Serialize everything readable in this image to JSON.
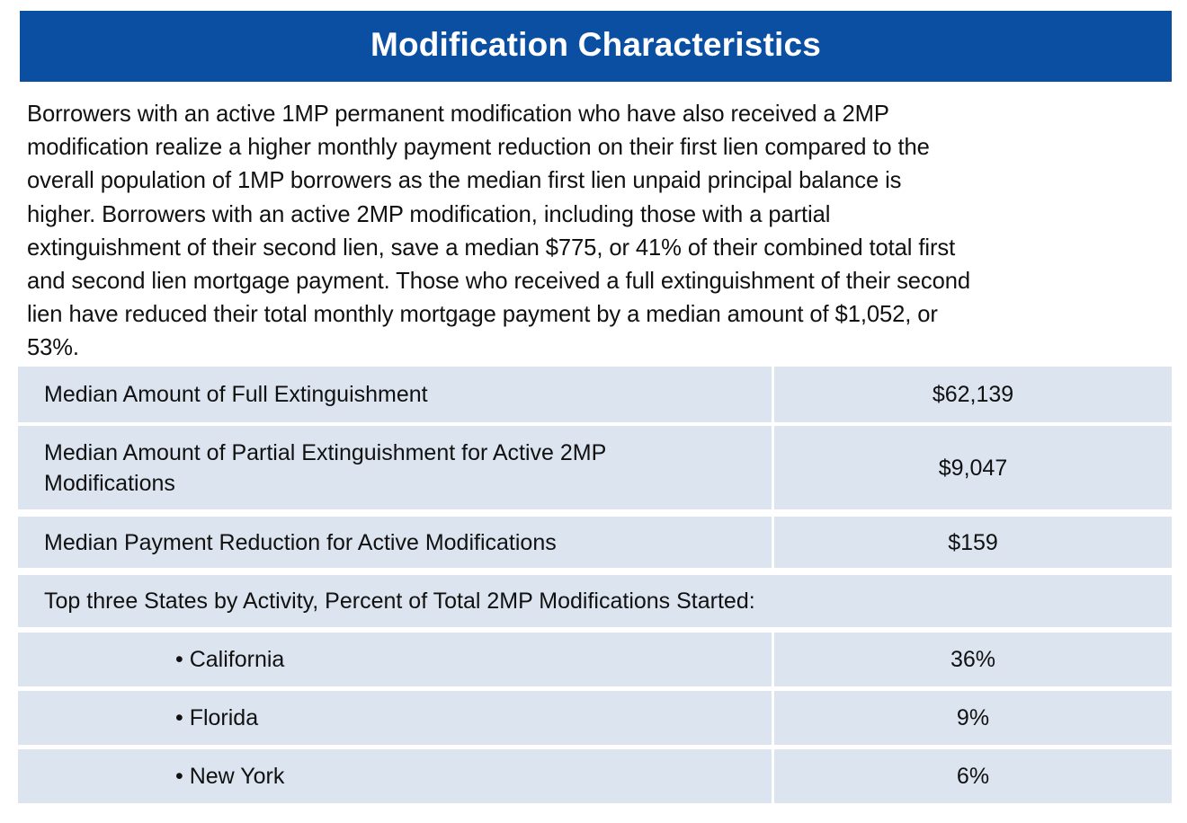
{
  "header": {
    "title": "Modification Characteristics"
  },
  "intro": {
    "lines": [
      "Borrowers with an active 1MP permanent modification who have also received a 2MP",
      "modification realize a higher monthly payment reduction on their first lien compared to the",
      "overall population of 1MP borrowers as the median first lien unpaid principal balance is",
      "higher. Borrowers with an active 2MP modification, including those with a partial",
      "extinguishment of their second lien, save a median $775, or 41% of their combined total first",
      "and second lien mortgage payment. Those who received a full extinguishment of their second",
      "lien have reduced their total monthly mortgage payment by a median amount of $1,052, or",
      "53%."
    ]
  },
  "table": {
    "rows": [
      {
        "label": "Median Amount of Full Extinguishment",
        "value": "$62,139"
      },
      {
        "label_line1": "Median Amount of Partial Extinguishment for Active 2MP",
        "label_line2": "Modifications",
        "value": "$9,047"
      },
      {
        "label": "Median Payment Reduction for Active Modifications",
        "value": "$159"
      },
      {
        "label": "Top three States by Activity, Percent of Total 2MP Modifications Started:"
      },
      {
        "label": "• California",
        "value": "36%"
      },
      {
        "label": "• Florida",
        "value": "9%"
      },
      {
        "label": "• New York",
        "value": "6%"
      }
    ]
  },
  "colors": {
    "header_bg": "#0b4fa2",
    "header_text": "#ffffff",
    "cell_bg": "#dbe4ef"
  }
}
